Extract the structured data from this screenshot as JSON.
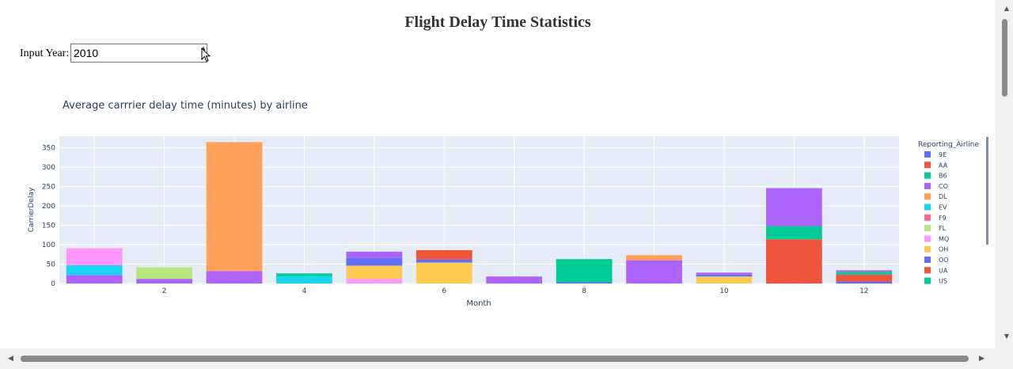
{
  "page": {
    "title": "Flight Delay Time Statistics",
    "year_label": "Input Year:",
    "year_value": "2010"
  },
  "chart_data": {
    "type": "bar",
    "barmode": "stack",
    "title": "Average carrrier delay time (minutes) by airline",
    "xlabel": "Month",
    "ylabel": "CarrierDelay",
    "legend_title": "Reporting_Airline",
    "legend_position": "right",
    "grid": true,
    "ylim": [
      0,
      380
    ],
    "xlim": [
      0.5,
      12.5
    ],
    "x_ticks": [
      2,
      4,
      6,
      8,
      10,
      12
    ],
    "y_ticks": [
      0,
      50,
      100,
      150,
      200,
      250,
      300,
      350
    ],
    "categories": [
      1,
      2,
      3,
      4,
      5,
      6,
      7,
      8,
      9,
      10,
      11,
      12
    ],
    "series": [
      {
        "name": "9E",
        "color": "#636efa",
        "values": [
          0,
          0,
          0,
          0,
          0,
          0,
          0,
          0,
          0,
          0,
          0,
          0
        ]
      },
      {
        "name": "AA",
        "color": "#ef553b",
        "values": [
          0,
          0,
          0,
          0,
          0,
          0,
          0,
          0,
          0,
          0,
          0,
          0
        ]
      },
      {
        "name": "B6",
        "color": "#00cc96",
        "values": [
          0,
          0,
          0,
          0,
          0,
          0,
          0,
          0,
          0,
          0,
          0,
          0
        ]
      },
      {
        "name": "CO",
        "color": "#ab63fa",
        "values": [
          22,
          12,
          32,
          0,
          0,
          0,
          18,
          0,
          60,
          0,
          0,
          0
        ]
      },
      {
        "name": "DL",
        "color": "#ffa15a",
        "values": [
          0,
          0,
          333,
          0,
          0,
          0,
          0,
          0,
          13,
          0,
          0,
          0
        ]
      },
      {
        "name": "EV",
        "color": "#19d3f3",
        "values": [
          25,
          0,
          0,
          18,
          0,
          0,
          0,
          0,
          0,
          0,
          0,
          0
        ]
      },
      {
        "name": "F9",
        "color": "#ff6692",
        "values": [
          0,
          0,
          0,
          0,
          0,
          0,
          0,
          0,
          0,
          0,
          0,
          0
        ]
      },
      {
        "name": "FL",
        "color": "#b6e880",
        "values": [
          0,
          30,
          0,
          0,
          0,
          0,
          0,
          0,
          0,
          0,
          0,
          0
        ]
      },
      {
        "name": "MQ",
        "color": "#ff97ff",
        "values": [
          44,
          0,
          0,
          0,
          12,
          0,
          0,
          0,
          0,
          0,
          0,
          0
        ]
      },
      {
        "name": "OH",
        "color": "#fecb52",
        "values": [
          0,
          0,
          0,
          0,
          34,
          54,
          0,
          0,
          0,
          18,
          0,
          0
        ]
      },
      {
        "name": "OO",
        "color": "#636efa",
        "values": [
          0,
          0,
          0,
          0,
          20,
          8,
          0,
          3,
          0,
          5,
          0,
          5
        ]
      },
      {
        "name": "UA",
        "color": "#ef553b",
        "values": [
          0,
          0,
          0,
          0,
          0,
          24,
          0,
          0,
          0,
          0,
          114,
          18
        ]
      },
      {
        "name": "US",
        "color": "#00cc96",
        "values": [
          0,
          0,
          0,
          8,
          0,
          0,
          0,
          60,
          0,
          0,
          34,
          7
        ]
      }
    ],
    "extra_stack": {
      "5": [
        {
          "color": "#ab63fa",
          "value": 16
        }
      ],
      "10": [
        {
          "color": "#ab63fa",
          "value": 5
        }
      ],
      "11": [
        {
          "color": "#ab63fa",
          "value": 98
        }
      ],
      "12": [
        {
          "color": "#ab63fa",
          "value": 4
        }
      ]
    }
  }
}
